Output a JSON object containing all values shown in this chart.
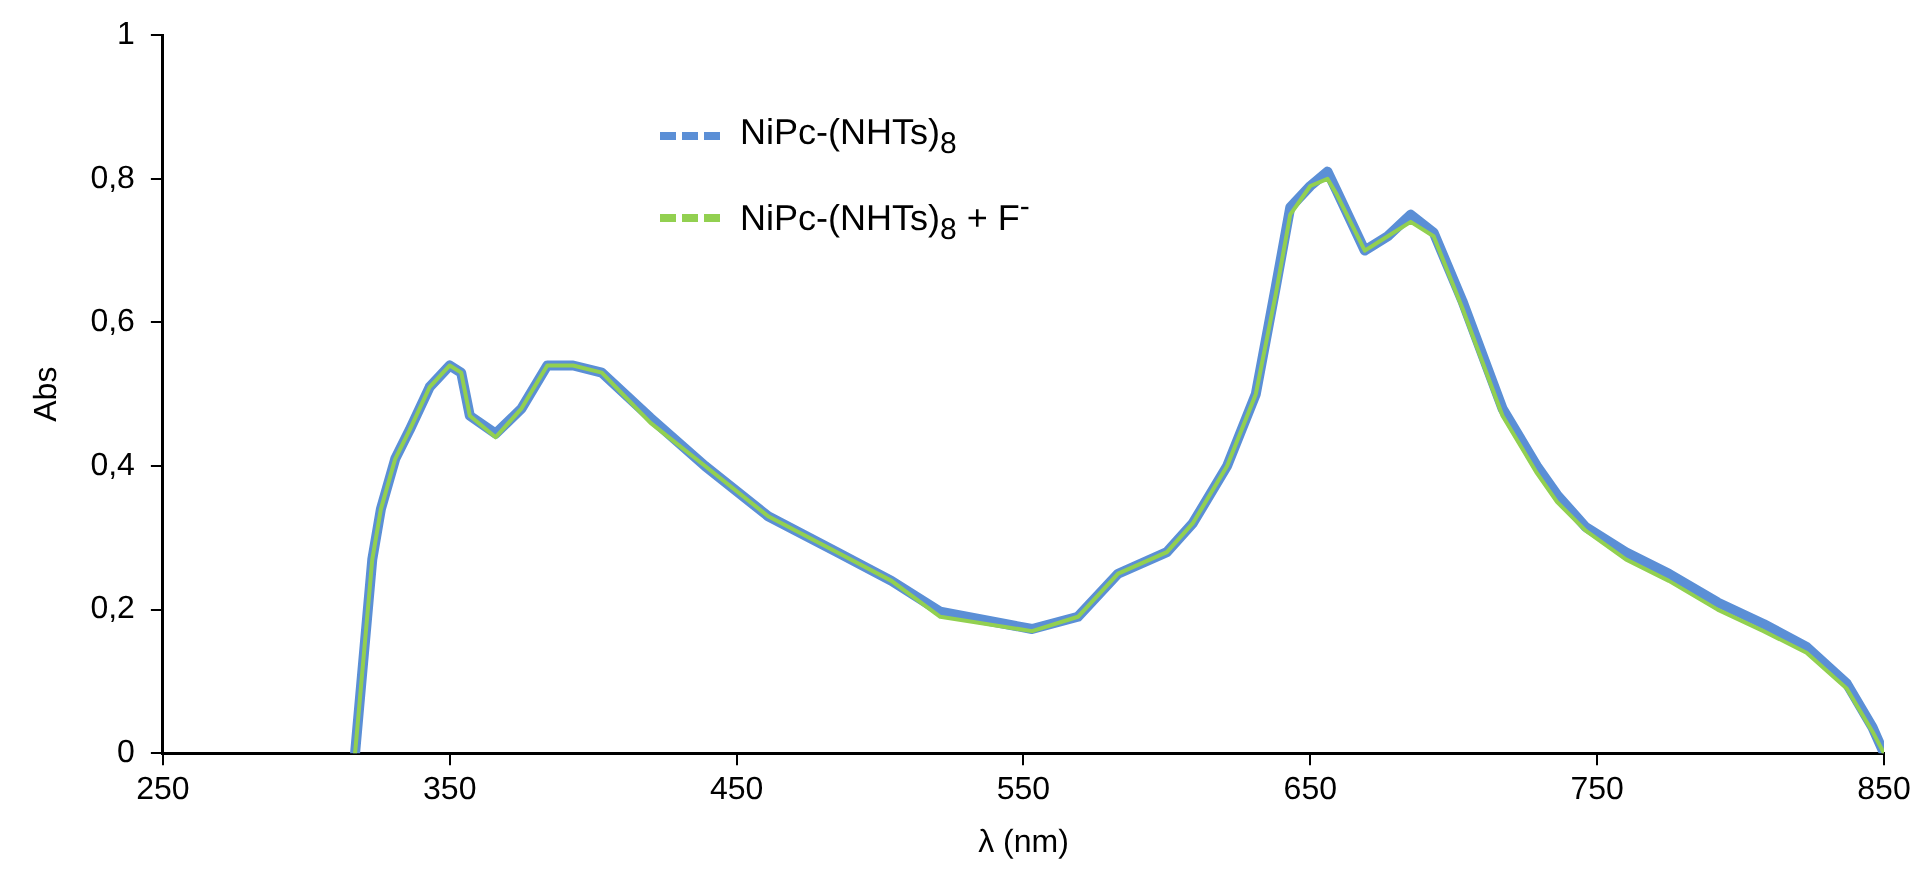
{
  "chart_data": {
    "type": "line",
    "xlabel": "λ (nm)",
    "ylabel": "Abs",
    "xlim": [
      250,
      850
    ],
    "xticks": [
      250,
      350,
      450,
      550,
      650,
      750,
      850
    ],
    "ylim": [
      0,
      1
    ],
    "yticks": [
      0,
      {
        "value": 0.2,
        "label": "0,2"
      },
      {
        "value": 0.4,
        "label": "0,4"
      },
      {
        "value": 0.6,
        "label": "0,6"
      },
      {
        "value": 0.8,
        "label": "0,8"
      },
      1
    ],
    "grid": false,
    "legend": "top left",
    "marker": "none",
    "series": [
      {
        "name": "NiPc-(NHTs)$_{8}$",
        "color": "#5b8fd6",
        "x": [
          317,
          323,
          326,
          331,
          336,
          343,
          350,
          354,
          357,
          366,
          375,
          384,
          393,
          403,
          420,
          439,
          461,
          485,
          504,
          521,
          553,
          569,
          583,
          600,
          609,
          621,
          631,
          638,
          643,
          650,
          656,
          659,
          669,
          677,
          685,
          693,
          703,
          717,
          729,
          736,
          746,
          760,
          775,
          792,
          808,
          823,
          837,
          846,
          850
        ],
        "values": [
          0,
          0.27,
          0.34,
          0.41,
          0.45,
          0.51,
          0.54,
          0.53,
          0.47,
          0.445,
          0.48,
          0.54,
          0.54,
          0.53,
          0.467,
          0.4,
          0.33,
          0.28,
          0.24,
          0.197,
          0.173,
          0.19,
          0.25,
          0.28,
          0.32,
          0.4,
          0.5,
          0.65,
          0.76,
          0.79,
          0.81,
          0.785,
          0.7,
          0.72,
          0.75,
          0.725,
          0.63,
          0.48,
          0.4,
          0.36,
          0.315,
          0.28,
          0.25,
          0.21,
          0.18,
          0.148,
          0.097,
          0.036,
          0
        ]
      },
      {
        "name": "NiPc-(NHTs)$_{8}$ + F$^{-}$",
        "color": "#92d050",
        "x": [
          317,
          323,
          326,
          331,
          336,
          343,
          350,
          354,
          357,
          366,
          375,
          384,
          393,
          403,
          420,
          439,
          461,
          485,
          504,
          521,
          553,
          569,
          583,
          600,
          609,
          621,
          631,
          638,
          643,
          650,
          656,
          659,
          669,
          677,
          685,
          693,
          703,
          717,
          729,
          736,
          746,
          760,
          775,
          792,
          808,
          823,
          837,
          846,
          850
        ],
        "values": [
          0,
          0.27,
          0.34,
          0.41,
          0.45,
          0.51,
          0.54,
          0.53,
          0.47,
          0.44,
          0.48,
          0.54,
          0.54,
          0.53,
          0.46,
          0.4,
          0.33,
          0.28,
          0.24,
          0.19,
          0.17,
          0.19,
          0.25,
          0.28,
          0.32,
          0.4,
          0.5,
          0.64,
          0.75,
          0.79,
          0.8,
          0.78,
          0.7,
          0.72,
          0.74,
          0.72,
          0.62,
          0.47,
          0.39,
          0.35,
          0.31,
          0.27,
          0.24,
          0.2,
          0.17,
          0.14,
          0.09,
          0.03,
          0
        ]
      }
    ]
  }
}
